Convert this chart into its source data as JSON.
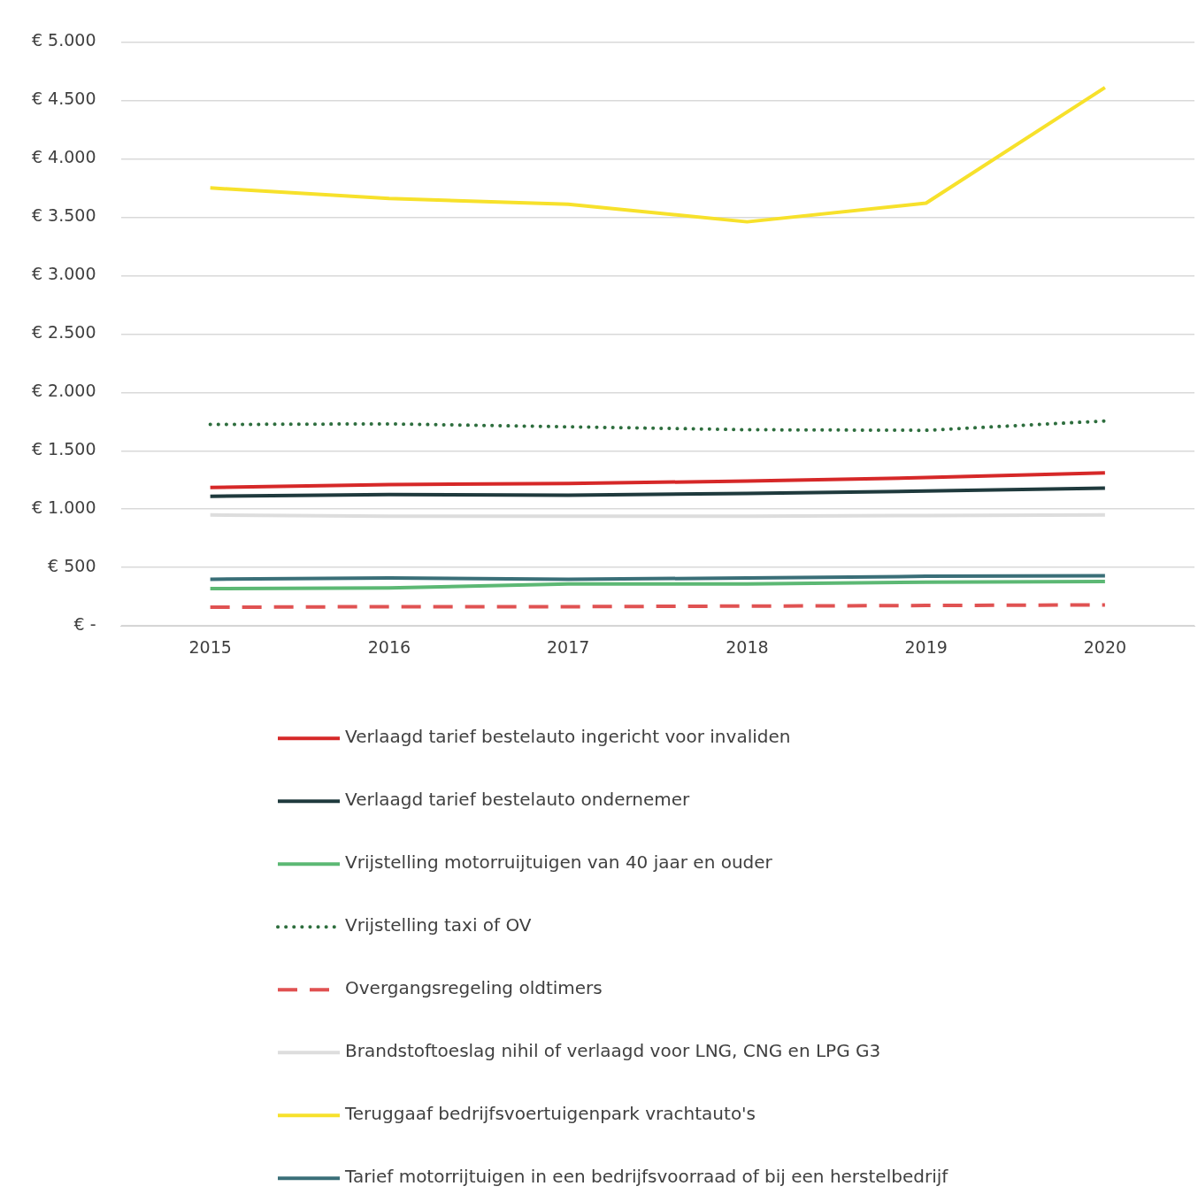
{
  "chart_data": {
    "type": "line",
    "categories": [
      "2015",
      "2016",
      "2017",
      "2018",
      "2019",
      "2020"
    ],
    "ylim": [
      0,
      5000
    ],
    "yticks": [
      {
        "value": 0,
        "label": "€ -"
      },
      {
        "value": 500,
        "label": "€ 500"
      },
      {
        "value": 1000,
        "label": "€ 1.000"
      },
      {
        "value": 1500,
        "label": "€ 1.500"
      },
      {
        "value": 2000,
        "label": "€ 2.000"
      },
      {
        "value": 2500,
        "label": "€ 2.500"
      },
      {
        "value": 3000,
        "label": "€ 3.000"
      },
      {
        "value": 3500,
        "label": "€ 3.500"
      },
      {
        "value": 4000,
        "label": "€ 4.000"
      },
      {
        "value": 4500,
        "label": "€ 4.500"
      },
      {
        "value": 5000,
        "label": "€ 5.000"
      }
    ],
    "grid": "y",
    "legend": "bottom",
    "marker": "none",
    "series": [
      {
        "name": "Verlaagd tarief bestelauto ingericht voor invaliden",
        "color": "#d62828",
        "values": [
          1185,
          1210,
          1220,
          1240,
          1270,
          1310
        ]
      },
      {
        "name": "Verlaagd tarief bestelauto ondernemer",
        "color": "#1f3a3d",
        "values": [
          1110,
          1125,
          1120,
          1135,
          1155,
          1180
        ]
      },
      {
        "name": "Vrijstelling motorruijtuigen van 40 jaar en ouder",
        "color": "#5cb874",
        "values": [
          320,
          325,
          360,
          360,
          375,
          380
        ]
      },
      {
        "name": "Vrijstelling taxi of OV",
        "color": "#2e6e3e",
        "line_style": "dotted",
        "values": [
          1725,
          1730,
          1705,
          1680,
          1675,
          1755
        ]
      },
      {
        "name": "Overgangsregeling oldtimers",
        "color": "#e05252",
        "line_style": "dashed",
        "values": [
          160,
          165,
          165,
          170,
          175,
          180
        ]
      },
      {
        "name": "Brandstoftoeslag nihil of verlaagd voor LNG, CNG en LPG G3",
        "color": "#dddddd",
        "values": [
          950,
          940,
          940,
          940,
          945,
          950
        ]
      },
      {
        "name": "Teruggaaf bedrijfsvoertuigenpark vrachtauto's",
        "color": "#f7e12b",
        "values": [
          3750,
          3660,
          3610,
          3460,
          3620,
          4610
        ]
      },
      {
        "name": "Tarief motorrijtuigen in een bedrijfsvoorraad of bij een herstelbedrijf",
        "color": "#3a6f78",
        "values": [
          400,
          410,
          400,
          410,
          425,
          430
        ]
      }
    ]
  }
}
